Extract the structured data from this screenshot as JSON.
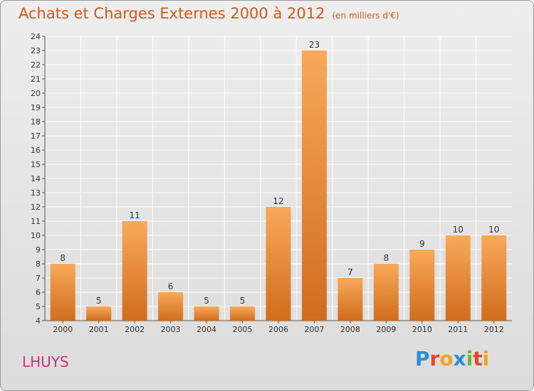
{
  "title": "Achats et Charges Externes 2000 à 2012",
  "unit_note": "(en milliers d'€)",
  "place_name": "LHUYS",
  "logo": {
    "text": "Proxiti",
    "colors": [
      "#2a8fd6",
      "#e8452b",
      "#f2a51a",
      "#2a8fd6",
      "#6bb82f",
      "#e8452b",
      "#f2a51a"
    ]
  },
  "colors": {
    "bar_light": "#f9a95a",
    "bar_dark": "#d06d1c",
    "title": "#d05a1a",
    "grid": "#ffffff"
  },
  "chart_data": {
    "type": "bar",
    "title": "Achats et Charges Externes 2000 à 2012",
    "xlabel": "",
    "ylabel": "",
    "categories": [
      "2000",
      "2001",
      "2002",
      "2003",
      "2004",
      "2005",
      "2006",
      "2007",
      "2008",
      "2009",
      "2010",
      "2011",
      "2012"
    ],
    "values": [
      8,
      5,
      11,
      6,
      5,
      5,
      12,
      23,
      7,
      8,
      9,
      10,
      10
    ],
    "ylim": [
      4,
      24
    ],
    "yticks": [
      4,
      5,
      6,
      7,
      8,
      9,
      10,
      11,
      12,
      13,
      14,
      15,
      16,
      17,
      18,
      19,
      20,
      21,
      22,
      23,
      24
    ],
    "grid": true,
    "data_labels": true
  }
}
